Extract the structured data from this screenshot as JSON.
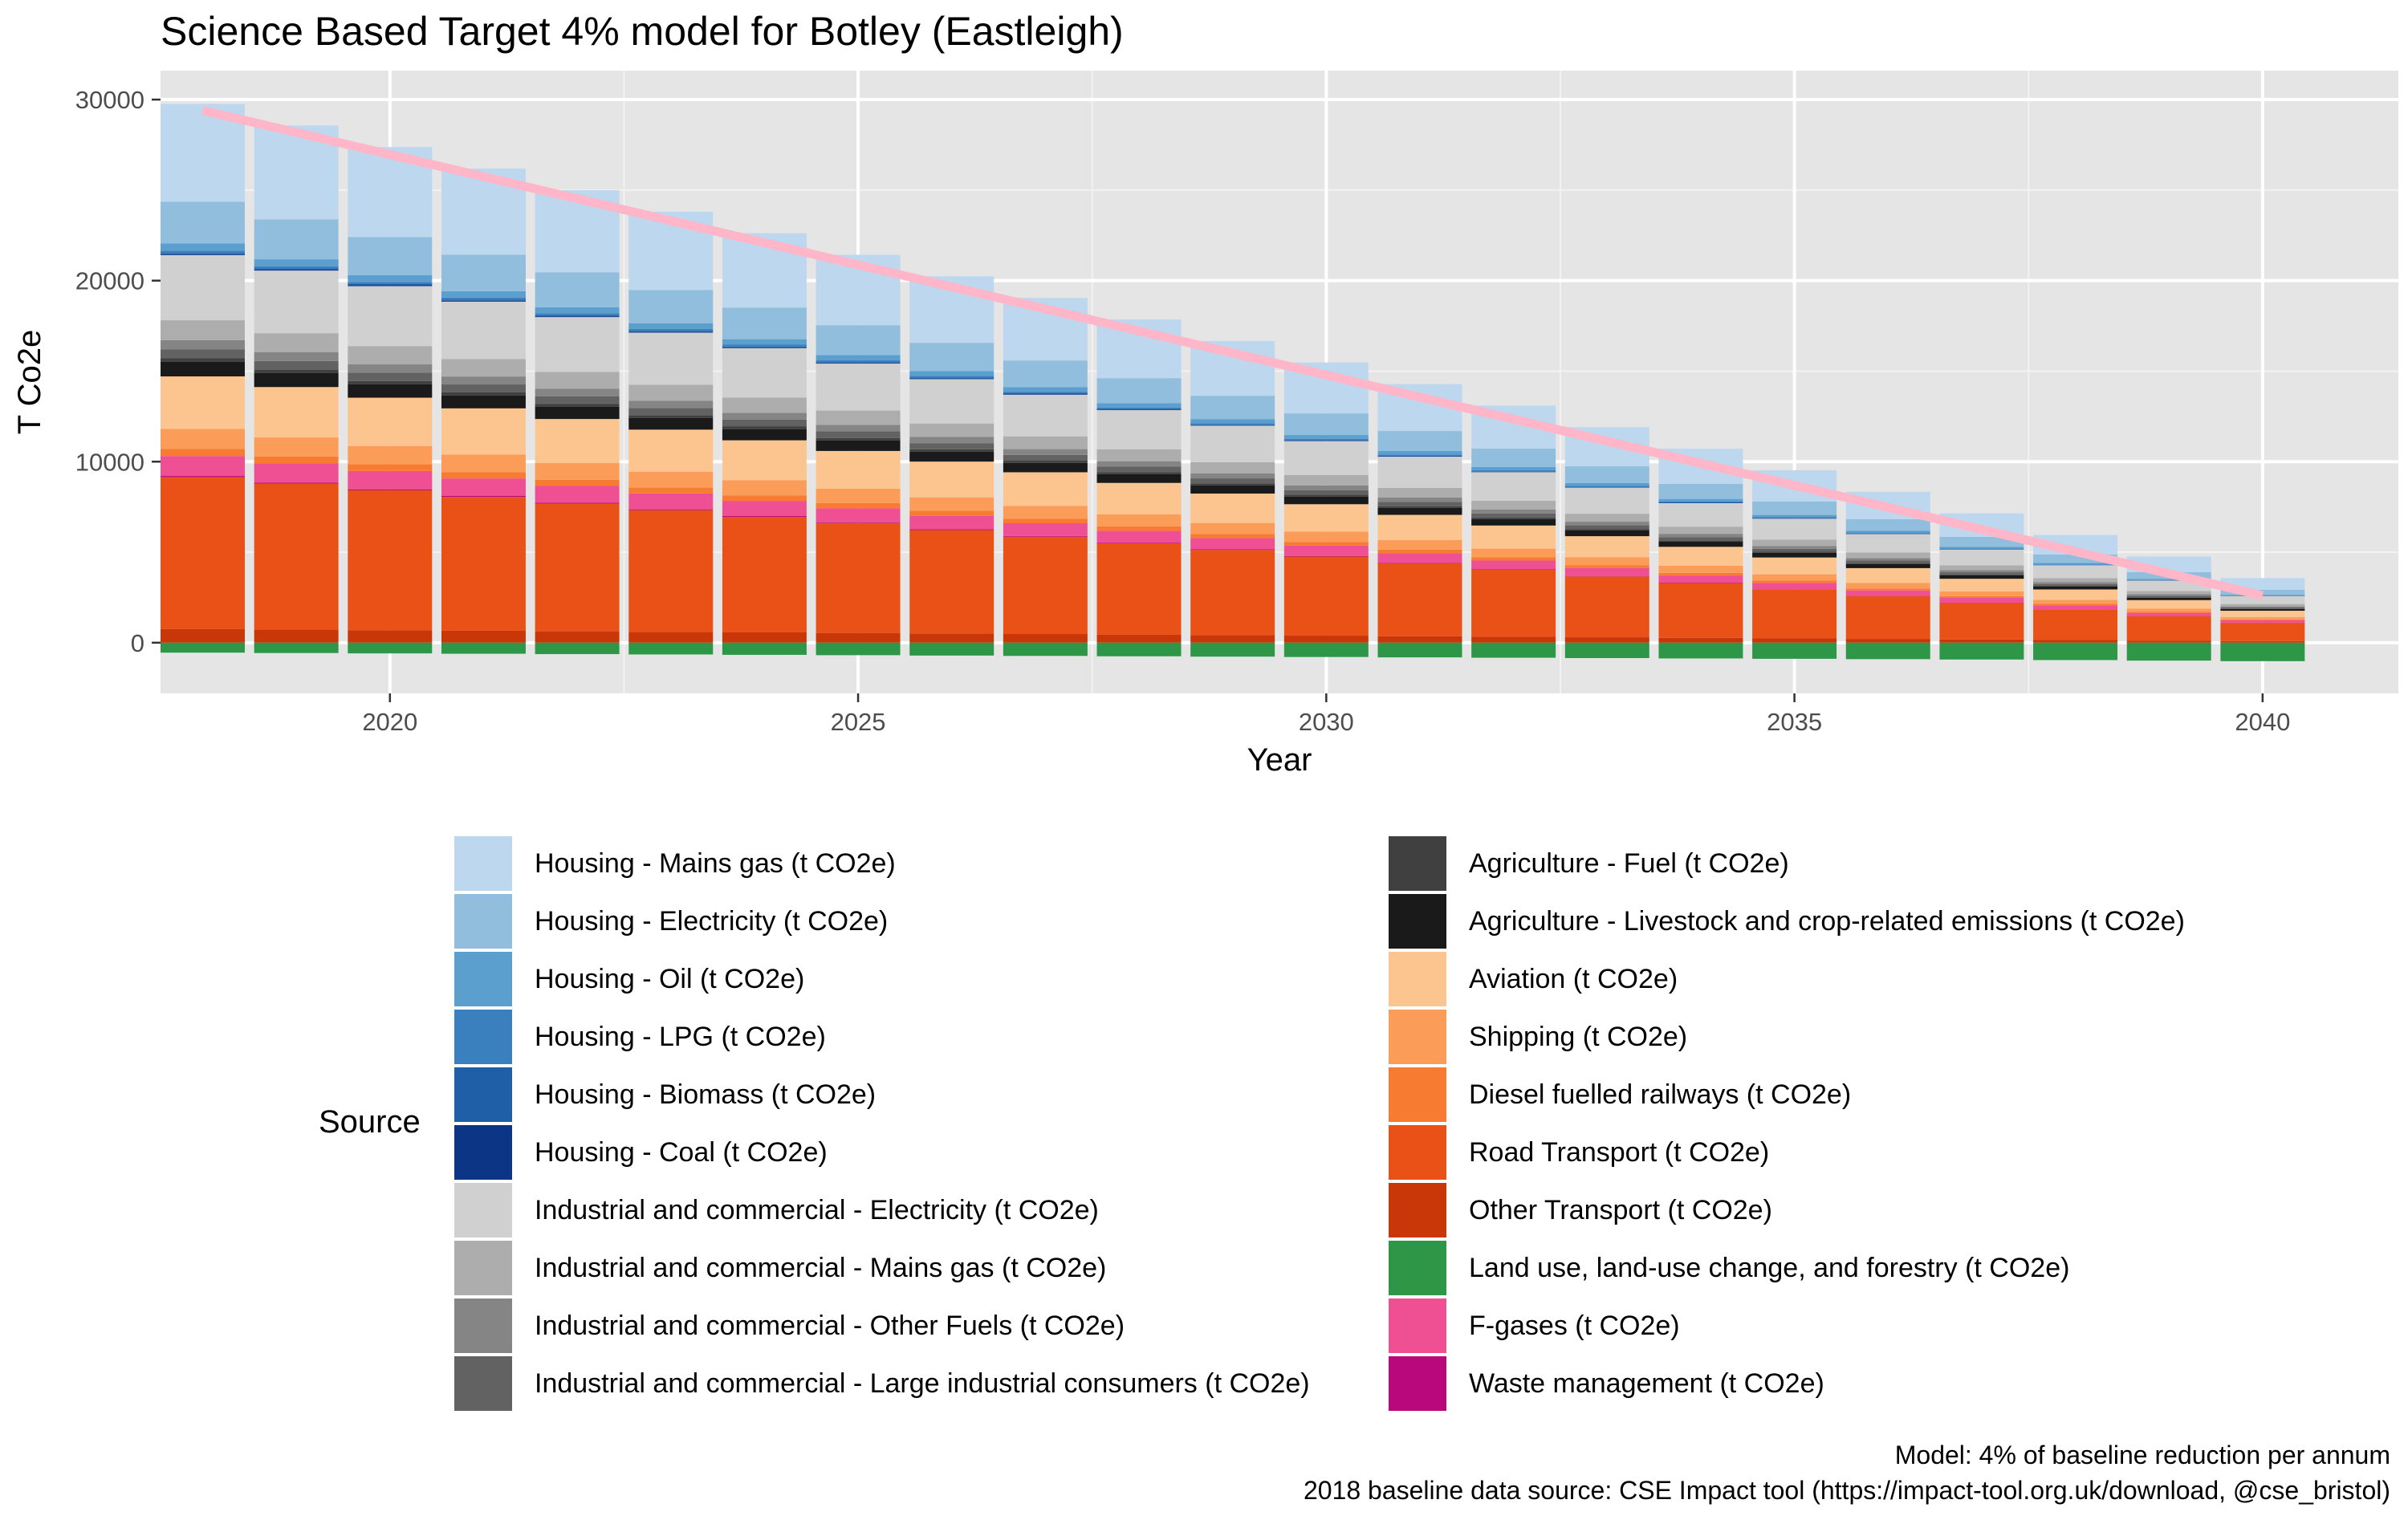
{
  "title": "Science Based Target 4% model for Botley (Eastleigh)",
  "caption": {
    "line1": "Model: 4% of baseline reduction per annum",
    "line2": "2018 baseline data source: CSE Impact tool (https://impact-tool.org.uk/download, @cse_bristol)"
  },
  "chart_data": {
    "type": "bar",
    "stacked": true,
    "title": "Science Based Target 4% model for Botley (Eastleigh)",
    "xlabel": "Year",
    "ylabel": "T Co2e",
    "xlim": [
      2017.55,
      2041.45
    ],
    "ylim": [
      -2800,
      31600
    ],
    "x_ticks": [
      2020,
      2025,
      2030,
      2035,
      2040
    ],
    "y_ticks": [
      0,
      10000,
      20000,
      30000
    ],
    "grid": true,
    "legend_title": "Source",
    "legend_position": "bottom",
    "x": [
      2018,
      2019,
      2020,
      2021,
      2022,
      2023,
      2024,
      2025,
      2026,
      2027,
      2028,
      2029,
      2030,
      2031,
      2032,
      2033,
      2034,
      2035,
      2036,
      2037,
      2038,
      2039,
      2040
    ],
    "baseline_2018": [
      {
        "name": "Housing - Mains gas (t CO2e)",
        "color": "#bdd7ee",
        "value": 5400
      },
      {
        "name": "Housing - Electricity (t CO2e)",
        "color": "#92bedd",
        "value": 2300
      },
      {
        "name": "Housing - Oil (t CO2e)",
        "color": "#5b9fcf",
        "value": 400
      },
      {
        "name": "Housing - LPG (t CO2e)",
        "color": "#3a80bf",
        "value": 130
      },
      {
        "name": "Housing - Biomass (t CO2e)",
        "color": "#1f5fa8",
        "value": 70
      },
      {
        "name": "Housing - Coal (t CO2e)",
        "color": "#0c3585",
        "value": 50
      },
      {
        "name": "Industrial and commercial - Electricity (t CO2e)",
        "color": "#d0d0d0",
        "value": 3600
      },
      {
        "name": "Industrial and commercial - Mains gas (t CO2e)",
        "color": "#adadad",
        "value": 1100
      },
      {
        "name": "Industrial and commercial - Other Fuels (t CO2e)",
        "color": "#858585",
        "value": 500
      },
      {
        "name": "Industrial and commercial - Large industrial consumers (t CO2e)",
        "color": "#626262",
        "value": 500
      },
      {
        "name": "Agriculture - Fuel (t CO2e)",
        "color": "#404040",
        "value": 200
      },
      {
        "name": "Agriculture - Livestock and crop-related emissions (t CO2e)",
        "color": "#1a1a1a",
        "value": 800
      },
      {
        "name": "Aviation (t CO2e)",
        "color": "#fcc58f",
        "value": 2900
      },
      {
        "name": "Shipping (t CO2e)",
        "color": "#fb9d59",
        "value": 1100
      },
      {
        "name": "Diesel fuelled railways (t CO2e)",
        "color": "#f77b31",
        "value": 400
      },
      {
        "name": "Road Transport (t CO2e)",
        "color": "#e95117",
        "value": 8400
      },
      {
        "name": "Other Transport (t CO2e)",
        "color": "#c93608",
        "value": 750
      },
      {
        "name": "Land use, land-use change, and forestry (t CO2e)",
        "color": "#2e9747",
        "value": -550
      },
      {
        "name": "F-gases (t CO2e)",
        "color": "#ef4f93",
        "value": 1100
      },
      {
        "name": "Waste management (t CO2e)",
        "color": "#b8087c",
        "value": 60
      }
    ],
    "stack_order_bottom_to_top": [
      "Other Transport (t CO2e)",
      "Road Transport (t CO2e)",
      "Waste management (t CO2e)",
      "F-gases (t CO2e)",
      "Diesel fuelled railways (t CO2e)",
      "Shipping (t CO2e)",
      "Aviation (t CO2e)",
      "Agriculture - Livestock and crop-related emissions (t CO2e)",
      "Agriculture - Fuel (t CO2e)",
      "Industrial and commercial - Large industrial consumers (t CO2e)",
      "Industrial and commercial - Other Fuels (t CO2e)",
      "Industrial and commercial - Mains gas (t CO2e)",
      "Industrial and commercial - Electricity (t CO2e)",
      "Housing - Coal (t CO2e)",
      "Housing - Biomass (t CO2e)",
      "Housing - LPG (t CO2e)",
      "Housing - Oil (t CO2e)",
      "Housing - Electricity (t CO2e)",
      "Housing - Mains gas (t CO2e)"
    ],
    "negative_series": [
      "Land use, land-use change, and forestry (t CO2e)"
    ],
    "positive_scale_by_year": [
      1.0,
      0.96,
      0.92,
      0.88,
      0.84,
      0.8,
      0.76,
      0.72,
      0.68,
      0.64,
      0.6,
      0.56,
      0.52,
      0.48,
      0.44,
      0.4,
      0.36,
      0.32,
      0.28,
      0.24,
      0.2,
      0.16,
      0.12
    ],
    "negative_values_by_year": [
      -550,
      -570,
      -590,
      -610,
      -630,
      -650,
      -670,
      -690,
      -710,
      -730,
      -750,
      -770,
      -790,
      -810,
      -830,
      -850,
      -870,
      -890,
      -910,
      -930,
      -960,
      -990,
      -1020
    ],
    "target_line": {
      "color": "#ffb6c8",
      "x": [
        2018,
        2040
      ],
      "y": [
        29400,
        2600
      ]
    }
  }
}
